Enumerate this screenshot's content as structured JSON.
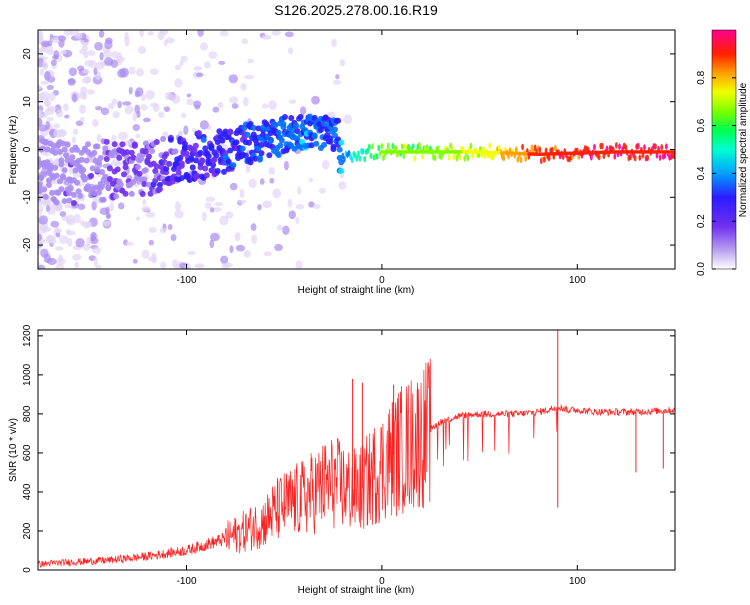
{
  "title": "S126.2025.278.00.16.R19",
  "chart_data": [
    {
      "type": "heatmap",
      "xlabel": "Height of straight line (km)",
      "ylabel": "Frequency (Hz)",
      "xlim": [
        -176,
        150
      ],
      "ylim": [
        -25,
        25
      ],
      "x_ticks": [
        -100,
        0,
        100
      ],
      "y_ticks": [
        -20,
        -10,
        0,
        10,
        20
      ],
      "colorbar": {
        "label": "Normalized spectral amplitude",
        "range": [
          0,
          1
        ],
        "ticks": [
          "0.0",
          "0.2",
          "0.4",
          "0.6",
          "0.8"
        ],
        "tick_values": [
          0,
          0.2,
          0.4,
          0.6,
          0.8
        ],
        "colors": [
          "#e8dcf7",
          "#a98cf2",
          "#6f2ff0",
          "#2b1cff",
          "#0070ff",
          "#00e8ff",
          "#00ff78",
          "#7cff00",
          "#f0ff00",
          "#ffa000",
          "#ff2000",
          "#ff0090"
        ]
      },
      "description_ridge": [
        {
          "x": -176,
          "y": -5,
          "amp": 0.05
        },
        {
          "x": -120,
          "y": -4,
          "amp": 0.15
        },
        {
          "x": -90,
          "y": -1,
          "amp": 0.25
        },
        {
          "x": -60,
          "y": 2,
          "amp": 0.3
        },
        {
          "x": -40,
          "y": 4,
          "amp": 0.35
        },
        {
          "x": -22,
          "y": 3,
          "amp": 0.3
        },
        {
          "x": -28,
          "y": -5,
          "amp": 0.25
        },
        {
          "x": -20,
          "y": -1,
          "amp": 0.4
        },
        {
          "x": 0,
          "y": -0.5,
          "amp": 0.6
        },
        {
          "x": 50,
          "y": -0.5,
          "amp": 0.7
        },
        {
          "x": 80,
          "y": -1,
          "amp": 0.9
        },
        {
          "x": 120,
          "y": -0.5,
          "amp": 0.95
        },
        {
          "x": 150,
          "y": -0.5,
          "amp": 0.95
        }
      ]
    },
    {
      "type": "line",
      "xlabel": "Height of straight line (km)",
      "ylabel": "SNR (10 * v/v)",
      "xlim": [
        -176,
        150
      ],
      "ylim": [
        0,
        1230
      ],
      "x_ticks": [
        -100,
        0,
        100
      ],
      "y_ticks": [
        0,
        200,
        400,
        600,
        800,
        1000,
        1200
      ],
      "color": "#ff2020",
      "x": [
        -176,
        -160,
        -140,
        -120,
        -100,
        -90,
        -80,
        -70,
        -60,
        -55,
        -50,
        -45,
        -40,
        -35,
        -30,
        -25,
        -20,
        -15,
        -10,
        -5,
        0,
        5,
        10,
        15,
        20,
        25,
        30,
        40,
        50,
        60,
        70,
        80,
        85,
        90,
        95,
        100,
        110,
        120,
        130,
        140,
        150
      ],
      "y": [
        30,
        40,
        50,
        70,
        100,
        130,
        160,
        200,
        250,
        300,
        330,
        350,
        370,
        400,
        430,
        450,
        430,
        400,
        420,
        480,
        530,
        580,
        620,
        650,
        680,
        720,
        760,
        790,
        800,
        800,
        800,
        810,
        820,
        840,
        820,
        820,
        810,
        810,
        810,
        815,
        820
      ],
      "spikes": [
        {
          "x": -15,
          "y": 980
        },
        {
          "x": -10,
          "y": 960
        },
        {
          "x": 6,
          "y": 950
        },
        {
          "x": 90,
          "y": 1230
        },
        {
          "x": 90,
          "y": 320
        },
        {
          "x": 130,
          "y": 500
        },
        {
          "x": 144,
          "y": 520
        }
      ]
    }
  ]
}
